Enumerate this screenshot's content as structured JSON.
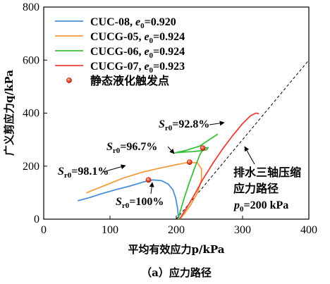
{
  "chart_data": {
    "type": "line",
    "xlabel": "平均有效应力p/kPa",
    "ylabel": "广义剪应力q/kPa",
    "xlim": [
      0,
      400
    ],
    "ylim": [
      0,
      800
    ],
    "xticks": [
      "0",
      "100",
      "200",
      "300",
      "400"
    ],
    "yticks": [
      "0",
      "200",
      "400",
      "600",
      "800"
    ],
    "caption": "（a）应力路径",
    "legend_position": "top-left",
    "series": [
      {
        "name": "CUC-08, e0=0.920",
        "color": "#4a90d9",
        "points": [
          [
            52,
            70
          ],
          [
            70,
            82
          ],
          [
            90,
            98
          ],
          [
            110,
            112
          ],
          [
            130,
            125
          ],
          [
            150,
            140
          ],
          [
            165,
            148
          ],
          [
            178,
            145
          ],
          [
            188,
            132
          ],
          [
            195,
            110
          ],
          [
            199,
            80
          ],
          [
            202,
            40
          ],
          [
            203,
            10
          ],
          [
            204,
            0
          ]
        ]
      },
      {
        "name": "CUCG-05, e0=0.924",
        "color": "#f39c3d",
        "points": [
          [
            65,
            100
          ],
          [
            90,
            125
          ],
          [
            120,
            155
          ],
          [
            150,
            178
          ],
          [
            180,
            195
          ],
          [
            205,
            208
          ],
          [
            220,
            215
          ],
          [
            232,
            212
          ],
          [
            238,
            190
          ],
          [
            238,
            150
          ],
          [
            232,
            100
          ],
          [
            222,
            55
          ],
          [
            212,
            20
          ],
          [
            205,
            0
          ]
        ]
      },
      {
        "name": "CUCG-06, e0=0.924",
        "color": "#3bbf3b",
        "points": [
          [
            203,
            0
          ],
          [
            206,
            30
          ],
          [
            212,
            80
          ],
          [
            220,
            140
          ],
          [
            228,
            195
          ],
          [
            236,
            245
          ],
          [
            242,
            268
          ],
          [
            248,
            270
          ],
          [
            246,
            262
          ],
          [
            238,
            258
          ],
          [
            225,
            255
          ],
          [
            210,
            253
          ],
          [
            198,
            250
          ],
          [
            215,
            260
          ],
          [
            235,
            275
          ],
          [
            262,
            320
          ]
        ]
      },
      {
        "name": "CUCG-07, e0=0.923",
        "color": "#e8403a",
        "points": [
          [
            205,
            0
          ],
          [
            215,
            40
          ],
          [
            228,
            95
          ],
          [
            240,
            150
          ],
          [
            255,
            210
          ],
          [
            270,
            265
          ],
          [
            285,
            315
          ],
          [
            300,
            360
          ],
          [
            312,
            390
          ],
          [
            320,
            400
          ],
          [
            324,
            398
          ]
        ]
      }
    ],
    "drained_path": {
      "p0": 200,
      "slope": 3,
      "label_lines": [
        "排水三轴压缩",
        "应力路径",
        "p0=200 kPa"
      ]
    },
    "liquefaction_points": {
      "name": "静态液化触发点",
      "color": "#e8403a",
      "points": [
        [
          158,
          148
        ],
        [
          220,
          215
        ],
        [
          240,
          268
        ]
      ]
    },
    "annotations": [
      {
        "label": "Sr0=92.8%",
        "at": [
          270,
          360
        ],
        "target": [
          302,
          355
        ]
      },
      {
        "label": "Sr0=96.7%",
        "at": [
          155,
          270
        ],
        "target": [
          198,
          268
        ]
      },
      {
        "label": "Sr0=98.1%",
        "at": [
          95,
          190
        ],
        "target": [
          118,
          185
        ]
      },
      {
        "label": "Sr0=100%",
        "at": [
          167,
          80
        ],
        "target": [
          158,
          130
        ]
      }
    ]
  }
}
